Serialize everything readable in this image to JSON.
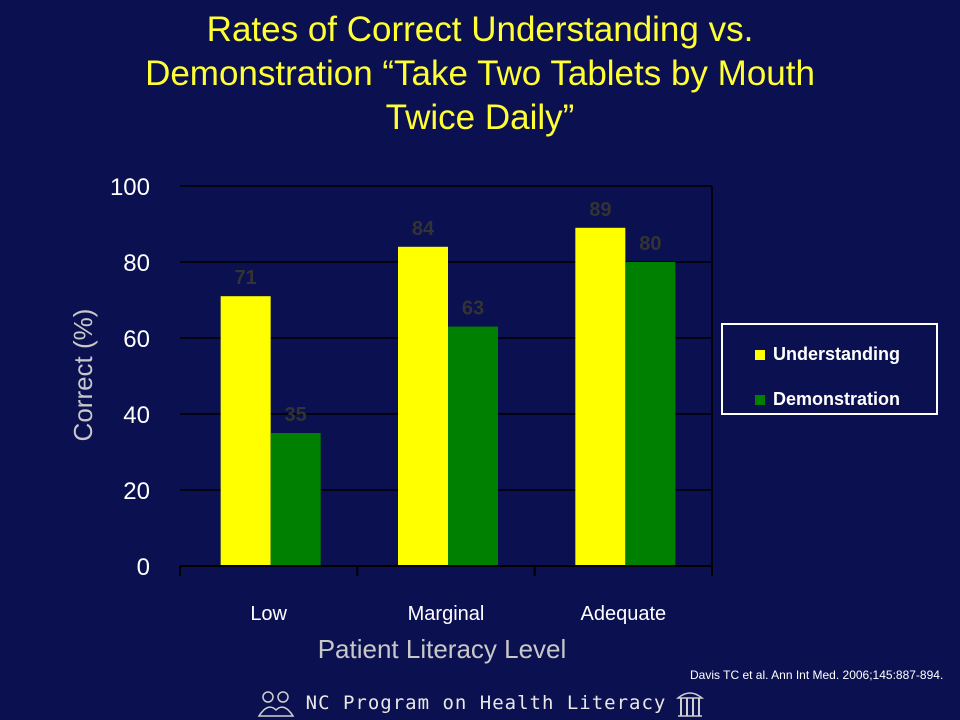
{
  "title_lines": [
    "Rates of Correct Understanding vs.",
    "Demonstration “Take Two Tablets by Mouth",
    "Twice Daily”"
  ],
  "colors": {
    "background": "#0b1050",
    "title": "#ffff33",
    "understanding": "#ffff00",
    "demonstration": "#008000",
    "axis_text": "#ffffff",
    "data_label": "#333333",
    "ylabel": "#c8c8c8"
  },
  "chart_data": {
    "type": "bar",
    "categories": [
      "Low",
      "Marginal",
      "Adequate"
    ],
    "series": [
      {
        "name": "Understanding",
        "values": [
          71,
          84,
          89
        ]
      },
      {
        "name": "Demonstration",
        "values": [
          35,
          63,
          80
        ]
      }
    ],
    "xlabel": "Patient Literacy Level",
    "ylabel": "Correct (%)",
    "ylim": [
      0,
      100
    ],
    "yticks": [
      0,
      20,
      40,
      60,
      80,
      100
    ],
    "grid": true,
    "legend_placement": "right"
  },
  "citation": "Davis TC et al. Ann Int Med. 2006;145:887-894.",
  "footer": {
    "program_name": "NC Program on Health Literacy",
    "left_logo_icon": "readers-icon",
    "right_logo_icon": "old-well-icon"
  }
}
